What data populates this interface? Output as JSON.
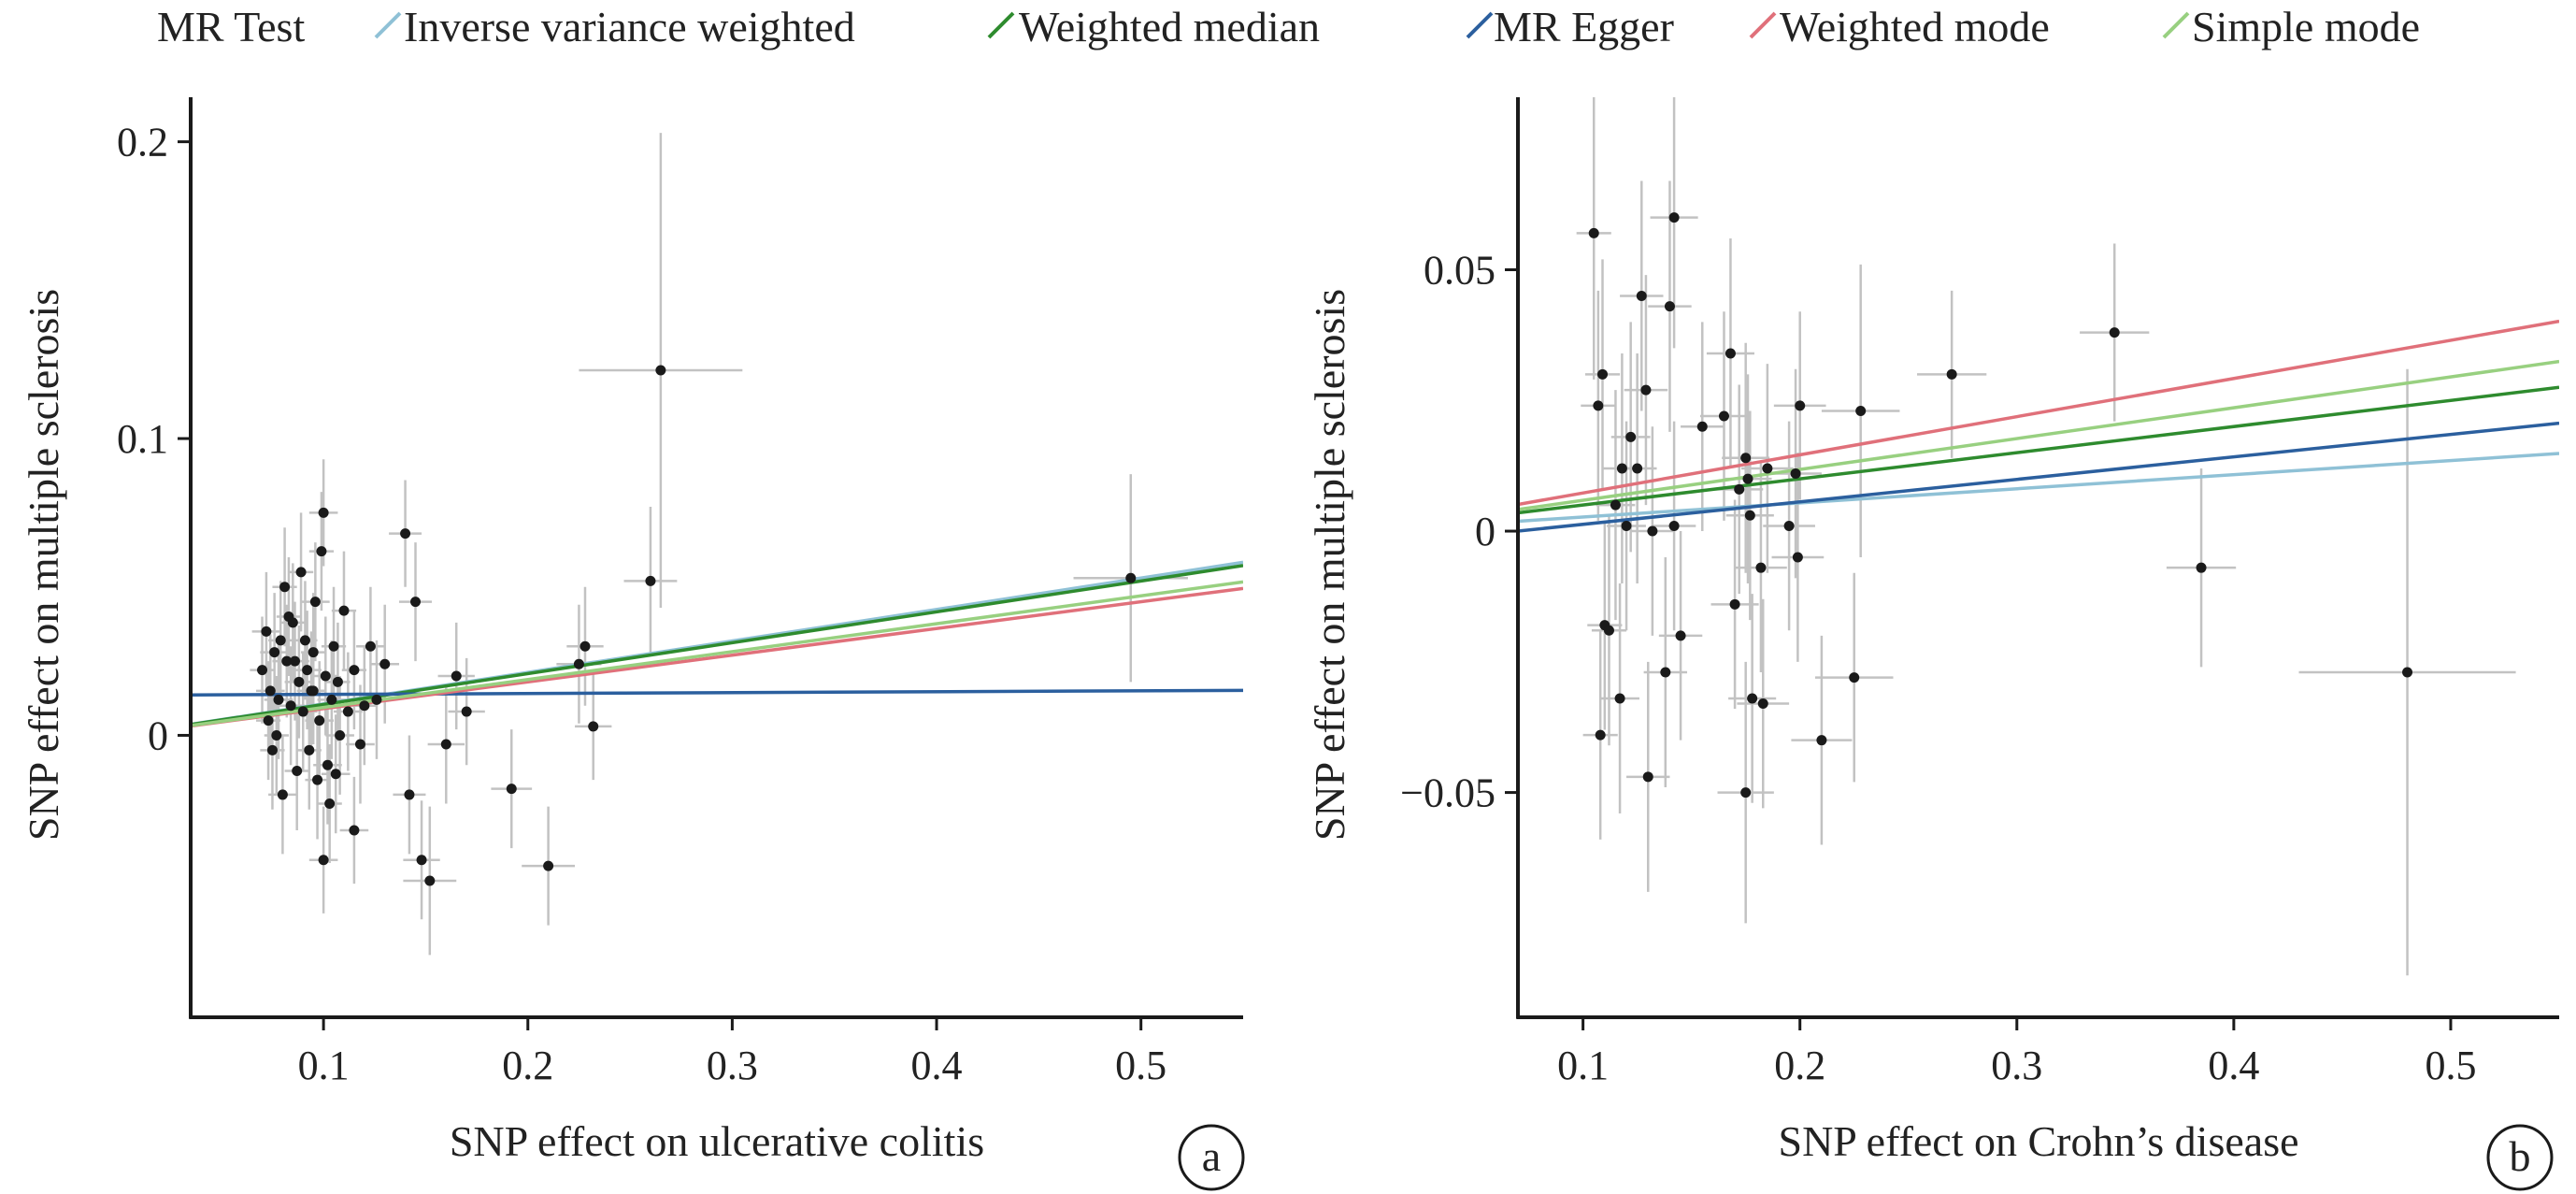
{
  "legend": {
    "title": "MR Test",
    "items": [
      {
        "label": "Inverse variance weighted",
        "color": "#8fc1d6"
      },
      {
        "label": "Weighted median",
        "color": "#2e8b2e"
      },
      {
        "label": "MR Egger",
        "color": "#2b5f9e"
      },
      {
        "label": "Weighted mode",
        "color": "#e0707a"
      },
      {
        "label": "Simple mode",
        "color": "#98d080"
      }
    ]
  },
  "chart_data": [
    {
      "type": "scatter",
      "panel_letter": "a",
      "xlabel": "SNP effect on ulcerative colitis",
      "ylabel": "SNP effect on multiple sclerosis",
      "xlim": [
        0.035,
        0.55
      ],
      "ylim": [
        -0.095,
        0.215
      ],
      "xticks": [
        0.1,
        0.2,
        0.3,
        0.4,
        0.5
      ],
      "xtick_labels": [
        "0.1",
        "0.2",
        "0.3",
        "0.4",
        "0.5"
      ],
      "yticks": [
        0,
        0.1,
        0.2
      ],
      "ytick_labels": [
        "0",
        "0.1",
        "0.2"
      ],
      "grid": false,
      "errorbar_color": "#c2c2c2",
      "point_color": "#1a1a1a",
      "points": [
        {
          "x": 0.07,
          "y": 0.022,
          "xe": 0.006,
          "ye": 0.018
        },
        {
          "x": 0.072,
          "y": 0.035,
          "xe": 0.007,
          "ye": 0.02
        },
        {
          "x": 0.073,
          "y": 0.005,
          "xe": 0.006,
          "ye": 0.02
        },
        {
          "x": 0.074,
          "y": 0.015,
          "xe": 0.007,
          "ye": 0.019
        },
        {
          "x": 0.075,
          "y": -0.005,
          "xe": 0.006,
          "ye": 0.02
        },
        {
          "x": 0.076,
          "y": 0.028,
          "xe": 0.007,
          "ye": 0.02
        },
        {
          "x": 0.077,
          "y": 0.0,
          "xe": 0.006,
          "ye": 0.02
        },
        {
          "x": 0.078,
          "y": 0.012,
          "xe": 0.007,
          "ye": 0.02
        },
        {
          "x": 0.079,
          "y": 0.032,
          "xe": 0.006,
          "ye": 0.02
        },
        {
          "x": 0.08,
          "y": -0.02,
          "xe": 0.007,
          "ye": 0.02
        },
        {
          "x": 0.081,
          "y": 0.05,
          "xe": 0.006,
          "ye": 0.02
        },
        {
          "x": 0.082,
          "y": 0.025,
          "xe": 0.007,
          "ye": 0.019
        },
        {
          "x": 0.083,
          "y": 0.04,
          "xe": 0.006,
          "ye": 0.02
        },
        {
          "x": 0.084,
          "y": 0.01,
          "xe": 0.007,
          "ye": 0.02
        },
        {
          "x": 0.085,
          "y": 0.038,
          "xe": 0.006,
          "ye": 0.02
        },
        {
          "x": 0.086,
          "y": 0.025,
          "xe": 0.007,
          "ye": 0.02
        },
        {
          "x": 0.087,
          "y": -0.012,
          "xe": 0.006,
          "ye": 0.02
        },
        {
          "x": 0.088,
          "y": 0.018,
          "xe": 0.007,
          "ye": 0.019
        },
        {
          "x": 0.089,
          "y": 0.055,
          "xe": 0.006,
          "ye": 0.02
        },
        {
          "x": 0.09,
          "y": 0.008,
          "xe": 0.007,
          "ye": 0.02
        },
        {
          "x": 0.091,
          "y": 0.032,
          "xe": 0.006,
          "ye": 0.02
        },
        {
          "x": 0.092,
          "y": 0.022,
          "xe": 0.007,
          "ye": 0.02
        },
        {
          "x": 0.093,
          "y": -0.005,
          "xe": 0.006,
          "ye": 0.02
        },
        {
          "x": 0.094,
          "y": 0.015,
          "xe": 0.007,
          "ye": 0.02
        },
        {
          "x": 0.095,
          "y": 0.028,
          "xe": 0.006,
          "ye": 0.02
        },
        {
          "x": 0.096,
          "y": 0.045,
          "xe": 0.007,
          "ye": 0.02
        },
        {
          "x": 0.097,
          "y": -0.015,
          "xe": 0.006,
          "ye": 0.02
        },
        {
          "x": 0.098,
          "y": 0.005,
          "xe": 0.007,
          "ye": 0.02
        },
        {
          "x": 0.099,
          "y": 0.062,
          "xe": 0.006,
          "ye": 0.02
        },
        {
          "x": 0.1,
          "y": 0.075,
          "xe": 0.007,
          "ye": 0.018
        },
        {
          "x": 0.101,
          "y": 0.02,
          "xe": 0.006,
          "ye": 0.02
        },
        {
          "x": 0.102,
          "y": -0.01,
          "xe": 0.007,
          "ye": 0.02
        },
        {
          "x": 0.103,
          "y": -0.023,
          "xe": 0.006,
          "ye": 0.02
        },
        {
          "x": 0.104,
          "y": 0.012,
          "xe": 0.007,
          "ye": 0.02
        },
        {
          "x": 0.105,
          "y": 0.03,
          "xe": 0.006,
          "ye": 0.02
        },
        {
          "x": 0.106,
          "y": -0.013,
          "xe": 0.007,
          "ye": 0.02
        },
        {
          "x": 0.107,
          "y": 0.018,
          "xe": 0.006,
          "ye": 0.02
        },
        {
          "x": 0.108,
          "y": 0.0,
          "xe": 0.007,
          "ye": 0.02
        },
        {
          "x": 0.11,
          "y": 0.042,
          "xe": 0.006,
          "ye": 0.02
        },
        {
          "x": 0.112,
          "y": 0.008,
          "xe": 0.007,
          "ye": 0.02
        },
        {
          "x": 0.115,
          "y": 0.022,
          "xe": 0.006,
          "ye": 0.02
        },
        {
          "x": 0.118,
          "y": -0.003,
          "xe": 0.007,
          "ye": 0.02
        },
        {
          "x": 0.12,
          "y": 0.01,
          "xe": 0.006,
          "ye": 0.02
        },
        {
          "x": 0.123,
          "y": 0.03,
          "xe": 0.007,
          "ye": 0.02
        },
        {
          "x": 0.126,
          "y": 0.012,
          "xe": 0.006,
          "ye": 0.02
        },
        {
          "x": 0.13,
          "y": 0.024,
          "xe": 0.007,
          "ye": 0.02
        },
        {
          "x": 0.095,
          "y": 0.015,
          "xe": 0.006,
          "ye": 0.018
        },
        {
          "x": 0.1,
          "y": -0.042,
          "xe": 0.007,
          "ye": 0.018
        },
        {
          "x": 0.115,
          "y": -0.032,
          "xe": 0.007,
          "ye": 0.018
        },
        {
          "x": 0.14,
          "y": 0.068,
          "xe": 0.008,
          "ye": 0.018
        },
        {
          "x": 0.142,
          "y": -0.02,
          "xe": 0.008,
          "ye": 0.02
        },
        {
          "x": 0.145,
          "y": 0.045,
          "xe": 0.008,
          "ye": 0.02
        },
        {
          "x": 0.148,
          "y": -0.042,
          "xe": 0.009,
          "ye": 0.02
        },
        {
          "x": 0.152,
          "y": -0.049,
          "xe": 0.013,
          "ye": 0.025
        },
        {
          "x": 0.16,
          "y": -0.003,
          "xe": 0.009,
          "ye": 0.02
        },
        {
          "x": 0.165,
          "y": 0.02,
          "xe": 0.009,
          "ye": 0.018
        },
        {
          "x": 0.17,
          "y": 0.008,
          "xe": 0.009,
          "ye": 0.018
        },
        {
          "x": 0.192,
          "y": -0.018,
          "xe": 0.01,
          "ye": 0.02
        },
        {
          "x": 0.21,
          "y": -0.044,
          "xe": 0.013,
          "ye": 0.02
        },
        {
          "x": 0.225,
          "y": 0.024,
          "xe": 0.011,
          "ye": 0.02
        },
        {
          "x": 0.228,
          "y": 0.03,
          "xe": 0.009,
          "ye": 0.02
        },
        {
          "x": 0.232,
          "y": 0.003,
          "xe": 0.009,
          "ye": 0.018
        },
        {
          "x": 0.26,
          "y": 0.052,
          "xe": 0.013,
          "ye": 0.025
        },
        {
          "x": 0.265,
          "y": 0.123,
          "xe": 0.04,
          "ye": 0.08
        },
        {
          "x": 0.495,
          "y": 0.053,
          "xe": 0.028,
          "ye": 0.035
        }
      ],
      "lines": [
        {
          "method": "Inverse variance weighted",
          "intercept": 0.0,
          "slope": 0.106
        },
        {
          "method": "Weighted median",
          "intercept": 0.0,
          "slope": 0.104
        },
        {
          "method": "MR Egger",
          "intercept": 0.0135,
          "slope": 0.003
        },
        {
          "method": "Weighted mode",
          "intercept": 0.0,
          "slope": 0.09
        },
        {
          "method": "Simple mode",
          "intercept": 0.0,
          "slope": 0.094
        }
      ]
    },
    {
      "type": "scatter",
      "panel_letter": "b",
      "xlabel": "SNP effect on Crohn’s disease",
      "ylabel": "SNP effect on multiple sclerosis",
      "xlim": [
        0.07,
        0.55
      ],
      "ylim": [
        -0.093,
        0.083
      ],
      "xticks": [
        0.1,
        0.2,
        0.3,
        0.4,
        0.5
      ],
      "xtick_labels": [
        "0.1",
        "0.2",
        "0.3",
        "0.4",
        "0.5"
      ],
      "yticks": [
        -0.05,
        0,
        0.05
      ],
      "ytick_labels": [
        "−0.05",
        "0",
        "0.05"
      ],
      "grid": false,
      "errorbar_color": "#c2c2c2",
      "point_color": "#1a1a1a",
      "points": [
        {
          "x": 0.105,
          "y": 0.057,
          "xe": 0.008,
          "ye": 0.028
        },
        {
          "x": 0.107,
          "y": 0.024,
          "xe": 0.008,
          "ye": 0.022
        },
        {
          "x": 0.108,
          "y": -0.039,
          "xe": 0.008,
          "ye": 0.02
        },
        {
          "x": 0.109,
          "y": 0.03,
          "xe": 0.008,
          "ye": 0.022
        },
        {
          "x": 0.11,
          "y": -0.018,
          "xe": 0.008,
          "ye": 0.02
        },
        {
          "x": 0.112,
          "y": -0.019,
          "xe": 0.008,
          "ye": 0.022
        },
        {
          "x": 0.115,
          "y": 0.005,
          "xe": 0.009,
          "ye": 0.022
        },
        {
          "x": 0.117,
          "y": -0.032,
          "xe": 0.009,
          "ye": 0.022
        },
        {
          "x": 0.118,
          "y": 0.012,
          "xe": 0.009,
          "ye": 0.022
        },
        {
          "x": 0.12,
          "y": 0.001,
          "xe": 0.009,
          "ye": 0.02
        },
        {
          "x": 0.122,
          "y": 0.018,
          "xe": 0.009,
          "ye": 0.022
        },
        {
          "x": 0.125,
          "y": 0.012,
          "xe": 0.009,
          "ye": 0.022
        },
        {
          "x": 0.127,
          "y": 0.045,
          "xe": 0.01,
          "ye": 0.022
        },
        {
          "x": 0.129,
          "y": 0.027,
          "xe": 0.01,
          "ye": 0.022
        },
        {
          "x": 0.13,
          "y": -0.047,
          "xe": 0.01,
          "ye": 0.022
        },
        {
          "x": 0.132,
          "y": 0.0,
          "xe": 0.01,
          "ye": 0.02
        },
        {
          "x": 0.138,
          "y": -0.027,
          "xe": 0.01,
          "ye": 0.022
        },
        {
          "x": 0.14,
          "y": 0.043,
          "xe": 0.01,
          "ye": 0.024
        },
        {
          "x": 0.142,
          "y": 0.06,
          "xe": 0.011,
          "ye": 0.025
        },
        {
          "x": 0.145,
          "y": -0.02,
          "xe": 0.01,
          "ye": 0.02
        },
        {
          "x": 0.142,
          "y": 0.001,
          "xe": 0.01,
          "ye": 0.02
        },
        {
          "x": 0.155,
          "y": 0.02,
          "xe": 0.01,
          "ye": 0.02
        },
        {
          "x": 0.165,
          "y": 0.022,
          "xe": 0.011,
          "ye": 0.02
        },
        {
          "x": 0.168,
          "y": 0.034,
          "xe": 0.011,
          "ye": 0.022
        },
        {
          "x": 0.17,
          "y": -0.014,
          "xe": 0.011,
          "ye": 0.02
        },
        {
          "x": 0.172,
          "y": 0.008,
          "xe": 0.011,
          "ye": 0.02
        },
        {
          "x": 0.175,
          "y": 0.014,
          "xe": 0.011,
          "ye": 0.022
        },
        {
          "x": 0.176,
          "y": 0.01,
          "xe": 0.011,
          "ye": 0.02
        },
        {
          "x": 0.177,
          "y": 0.003,
          "xe": 0.011,
          "ye": 0.02
        },
        {
          "x": 0.175,
          "y": -0.05,
          "xe": 0.013,
          "ye": 0.025
        },
        {
          "x": 0.178,
          "y": -0.032,
          "xe": 0.011,
          "ye": 0.02
        },
        {
          "x": 0.182,
          "y": -0.007,
          "xe": 0.012,
          "ye": 0.02
        },
        {
          "x": 0.183,
          "y": -0.033,
          "xe": 0.012,
          "ye": 0.02
        },
        {
          "x": 0.185,
          "y": 0.012,
          "xe": 0.012,
          "ye": 0.02
        },
        {
          "x": 0.195,
          "y": 0.001,
          "xe": 0.012,
          "ye": 0.02
        },
        {
          "x": 0.198,
          "y": 0.011,
          "xe": 0.012,
          "ye": 0.02
        },
        {
          "x": 0.199,
          "y": -0.005,
          "xe": 0.012,
          "ye": 0.02
        },
        {
          "x": 0.2,
          "y": 0.024,
          "xe": 0.012,
          "ye": 0.018
        },
        {
          "x": 0.21,
          "y": -0.04,
          "xe": 0.014,
          "ye": 0.02
        },
        {
          "x": 0.225,
          "y": -0.028,
          "xe": 0.018,
          "ye": 0.02
        },
        {
          "x": 0.228,
          "y": 0.023,
          "xe": 0.018,
          "ye": 0.028
        },
        {
          "x": 0.27,
          "y": 0.03,
          "xe": 0.016,
          "ye": 0.016
        },
        {
          "x": 0.345,
          "y": 0.038,
          "xe": 0.016,
          "ye": 0.017
        },
        {
          "x": 0.385,
          "y": -0.007,
          "xe": 0.016,
          "ye": 0.019
        },
        {
          "x": 0.48,
          "y": -0.027,
          "xe": 0.05,
          "ye": 0.058
        }
      ],
      "lines": [
        {
          "method": "Inverse variance weighted",
          "intercept": 0.0,
          "slope": 0.027
        },
        {
          "method": "Weighted median",
          "intercept": 0.0,
          "slope": 0.05
        },
        {
          "method": "MR Egger",
          "intercept": -0.003,
          "slope": 0.043
        },
        {
          "method": "Weighted mode",
          "intercept": 0.0,
          "slope": 0.073
        },
        {
          "method": "Simple mode",
          "intercept": 0.0,
          "slope": 0.059
        }
      ]
    }
  ]
}
